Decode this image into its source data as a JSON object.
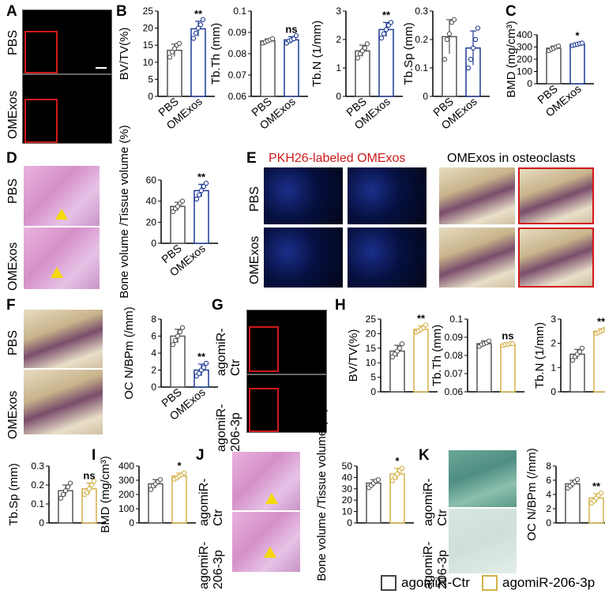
{
  "panels": {
    "A": {
      "label": "A",
      "rows": [
        "PBS",
        "OMExos"
      ]
    },
    "B": {
      "label": "B"
    },
    "C": {
      "label": "C"
    },
    "D": {
      "label": "D",
      "rows": [
        "PBS",
        "OMExos"
      ]
    },
    "E": {
      "label": "E",
      "title_left": "PKH26-labeled OMExos",
      "title_right": "OMExos in osteoclasts",
      "rows": [
        "PBS",
        "OMExos"
      ]
    },
    "F": {
      "label": "F",
      "rows": [
        "PBS",
        "OMExos"
      ]
    },
    "G": {
      "label": "G",
      "rows": [
        "agomiR-Ctr",
        "agomiR-206-3p"
      ],
      "rows_line1": [
        "agomiR-",
        "agomiR-"
      ],
      "rows_line2": [
        "Ctr",
        "206-3p"
      ]
    },
    "H": {
      "label": "H"
    },
    "I": {
      "label": "I"
    },
    "J": {
      "label": "J",
      "rows_line1": [
        "agomiR-",
        "agomiR-"
      ],
      "rows_line2": [
        "Ctr",
        "206-3p"
      ]
    },
    "K": {
      "label": "K",
      "rows_line1": [
        "agomiR-",
        "agomiR-"
      ],
      "rows_line2": [
        "Ctr",
        "206-3p"
      ]
    }
  },
  "legend": {
    "ctr": "agomiR-Ctr",
    "ago": "agomiR-206-3p",
    "ctr_color": "#444444",
    "ago_color": "#d4b14a"
  },
  "colors": {
    "pbs": "#555555",
    "omexos": "#1f3a93",
    "ctr": "#555555",
    "ago": "#d4b14a"
  },
  "chart_data": [
    {
      "id": "B1",
      "type": "bar",
      "ylabel": "BV/TV(%)",
      "categories": [
        "PBS",
        "OMExos"
      ],
      "values": [
        13.5,
        19.8
      ],
      "errors": [
        1.8,
        2.2
      ],
      "ylim": [
        0,
        25
      ],
      "ticks": [
        0,
        5,
        10,
        15,
        20,
        25
      ],
      "sig": "**",
      "points": [
        [
          11.5,
          13,
          14,
          15,
          15.5
        ],
        [
          17,
          18.5,
          20,
          21,
          22.5
        ]
      ]
    },
    {
      "id": "B2",
      "type": "bar",
      "ylabel": "Tb.Th (mm)",
      "categories": [
        "PBS",
        "OMExos"
      ],
      "values": [
        0.086,
        0.0865
      ],
      "errors": [
        0.001,
        0.0015
      ],
      "ylim": [
        0.06,
        0.1
      ],
      "ticks": [
        0.06,
        0.07,
        0.08,
        0.09,
        0.1
      ],
      "sig": "ns",
      "points": [
        [
          0.085,
          0.0855,
          0.086,
          0.0865,
          0.087
        ],
        [
          0.085,
          0.086,
          0.0865,
          0.087,
          0.0885
        ]
      ]
    },
    {
      "id": "B3",
      "type": "bar",
      "ylabel": "Tb.N (1/mm)",
      "categories": [
        "PBS",
        "OMExos"
      ],
      "values": [
        1.6,
        2.35
      ],
      "errors": [
        0.2,
        0.25
      ],
      "ylim": [
        0,
        3
      ],
      "ticks": [
        0,
        1,
        2,
        3
      ],
      "sig": "**",
      "points": [
        [
          1.35,
          1.5,
          1.6,
          1.7,
          1.85
        ],
        [
          2.05,
          2.2,
          2.35,
          2.5,
          2.6
        ]
      ]
    },
    {
      "id": "B4",
      "type": "bar",
      "ylabel": "Tb.Sp (mm)",
      "categories": [
        "PBS",
        "OMExos"
      ],
      "values": [
        0.21,
        0.17
      ],
      "errors": [
        0.06,
        0.06
      ],
      "ylim": [
        0,
        0.3
      ],
      "ticks": [
        0,
        0.1,
        0.2,
        0.3
      ],
      "sig": "",
      "points": [
        [
          0.13,
          0.2,
          0.22,
          0.26,
          0.27
        ],
        [
          0.1,
          0.13,
          0.17,
          0.2,
          0.24
        ]
      ]
    },
    {
      "id": "C",
      "type": "bar",
      "ylabel": "BMD (mg/cm³)",
      "categories": [
        "PBS",
        "OMExos"
      ],
      "values": [
        290,
        322
      ],
      "errors": [
        18,
        10
      ],
      "ylim": [
        0,
        400
      ],
      "ticks": [
        0,
        100,
        200,
        300,
        400
      ],
      "sig": "*",
      "points": [
        [
          270,
          282,
          290,
          300,
          308
        ],
        [
          312,
          318,
          322,
          328,
          332
        ]
      ]
    },
    {
      "id": "D",
      "type": "bar",
      "ylabel": "Bone volume /Tissue volume (%)",
      "categories": [
        "PBS",
        "OMExos"
      ],
      "values": [
        35,
        50
      ],
      "errors": [
        4,
        6
      ],
      "ylim": [
        0,
        60
      ],
      "ticks": [
        0,
        20,
        40,
        60
      ],
      "sig": "**",
      "points": [
        [
          30,
          33,
          35,
          38,
          40
        ],
        [
          42,
          46,
          50,
          54,
          57
        ]
      ]
    },
    {
      "id": "F",
      "type": "bar",
      "ylabel": "OC N/BPm (/mm)",
      "categories": [
        "PBS",
        "OMExos"
      ],
      "values": [
        6,
        2
      ],
      "errors": [
        0.8,
        0.7
      ],
      "ylim": [
        0,
        8
      ],
      "ticks": [
        0,
        2,
        4,
        6,
        8
      ],
      "sig": "**",
      "points": [
        [
          5,
          5.5,
          6,
          6.5,
          7
        ],
        [
          1.3,
          1.6,
          2,
          2.3,
          2.8
        ]
      ]
    },
    {
      "id": "H1",
      "type": "bar",
      "ylabel": "BV/TV(%)",
      "categories": [
        "agomiR-Ctr",
        "agomiR-206-3p"
      ],
      "values": [
        14,
        21.5
      ],
      "errors": [
        2,
        1.2
      ],
      "ylim": [
        0,
        25
      ],
      "ticks": [
        0,
        5,
        10,
        15,
        20,
        25
      ],
      "sig": "**",
      "points": [
        [
          12,
          13,
          14,
          15,
          16.5
        ],
        [
          20.5,
          21,
          21.5,
          22,
          23
        ]
      ]
    },
    {
      "id": "H2",
      "type": "bar",
      "ylabel": "Tb.Th (mm)",
      "categories": [
        "agomiR-Ctr",
        "agomiR-206-3p"
      ],
      "values": [
        0.0865,
        0.086
      ],
      "errors": [
        0.0015,
        0.0008
      ],
      "ylim": [
        0.06,
        0.1
      ],
      "ticks": [
        0.06,
        0.07,
        0.08,
        0.09,
        0.1
      ],
      "sig": "ns",
      "points": [
        [
          0.085,
          0.086,
          0.0865,
          0.087,
          0.088
        ],
        [
          0.0855,
          0.086,
          0.086,
          0.0865,
          0.0865
        ]
      ]
    },
    {
      "id": "H3",
      "type": "bar",
      "ylabel": "Tb.N (1/mm)",
      "categories": [
        "agomiR-Ctr",
        "agomiR-206-3p"
      ],
      "values": [
        1.55,
        2.5
      ],
      "errors": [
        0.2,
        0.1
      ],
      "ylim": [
        0,
        3
      ],
      "ticks": [
        0,
        1,
        2,
        3
      ],
      "sig": "**",
      "points": [
        [
          1.3,
          1.45,
          1.55,
          1.65,
          1.8
        ],
        [
          2.4,
          2.45,
          2.5,
          2.55,
          2.6
        ]
      ]
    },
    {
      "id": "H4",
      "type": "bar",
      "ylabel": "Tb.Sp (mm)",
      "categories": [
        "agomiR-Ctr",
        "agomiR-206-3p"
      ],
      "values": [
        0.17,
        0.18
      ],
      "errors": [
        0.03,
        0.03
      ],
      "ylim": [
        0,
        0.3
      ],
      "ticks": [
        0,
        0.1,
        0.2,
        0.3
      ],
      "sig": "ns",
      "points": [
        [
          0.13,
          0.15,
          0.17,
          0.19,
          0.21
        ],
        [
          0.15,
          0.16,
          0.18,
          0.2,
          0.22
        ]
      ]
    },
    {
      "id": "I",
      "type": "bar",
      "ylabel": "BMD (mg/cm³)",
      "categories": [
        "agomiR-Ctr",
        "agomiR-206-3p"
      ],
      "values": [
        275,
        330
      ],
      "errors": [
        30,
        20
      ],
      "ylim": [
        0,
        400
      ],
      "ticks": [
        0,
        100,
        200,
        300,
        400
      ],
      "sig": "*",
      "points": [
        [
          235,
          260,
          275,
          290,
          305
        ],
        [
          308,
          318,
          330,
          340,
          352
        ]
      ]
    },
    {
      "id": "J",
      "type": "bar",
      "ylabel": "Bone volume /Tissue volume (%)",
      "categories": [
        "agomiR-Ctr",
        "agomiR-206-3p"
      ],
      "values": [
        35,
        43
      ],
      "errors": [
        3,
        5
      ],
      "ylim": [
        0,
        50
      ],
      "ticks": [
        0,
        10,
        20,
        30,
        40,
        50
      ],
      "sig": "*",
      "points": [
        [
          31,
          33,
          35,
          37,
          38
        ],
        [
          37,
          40,
          43,
          46,
          48
        ]
      ]
    },
    {
      "id": "K",
      "type": "bar",
      "ylabel": "OC N/BPm (/mm)",
      "categories": [
        "agomiR-Ctr",
        "agomiR-206-3p"
      ],
      "values": [
        5.5,
        3.5
      ],
      "errors": [
        0.5,
        0.6
      ],
      "ylim": [
        0,
        8
      ],
      "ticks": [
        0,
        2,
        4,
        6,
        8
      ],
      "sig": "**",
      "points": [
        [
          4.9,
          5.2,
          5.5,
          5.8,
          6.1
        ],
        [
          2.8,
          3.1,
          3.5,
          3.9,
          4.2
        ]
      ]
    }
  ]
}
